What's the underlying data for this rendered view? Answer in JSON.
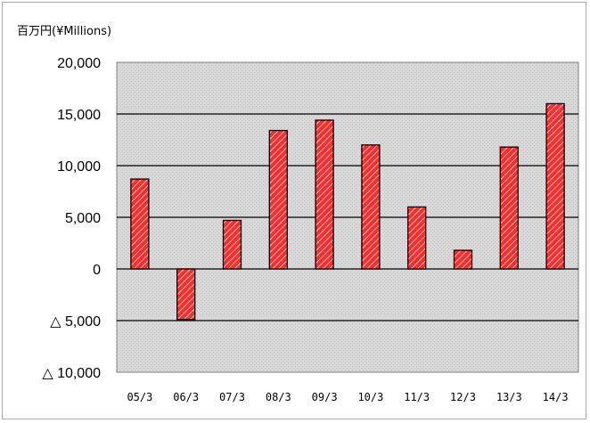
{
  "chart_data": {
    "type": "bar",
    "unit_label": "百万円(¥Millions)",
    "categories": [
      "05/3",
      "06/3",
      "07/3",
      "08/3",
      "09/3",
      "10/3",
      "11/3",
      "12/3",
      "13/3",
      "14/3"
    ],
    "values": [
      8700,
      -4900,
      4700,
      13400,
      14400,
      12000,
      6000,
      1800,
      11800,
      16000
    ],
    "ylim": [
      -10000,
      20000
    ],
    "yticks": [
      20000,
      15000,
      10000,
      5000,
      0,
      -5000,
      -10000
    ],
    "ytick_labels": [
      "20,000",
      "15,000",
      "10,000",
      "5,000",
      "0",
      "△ 5,000",
      "△ 10,000"
    ],
    "grid": true,
    "legend": "none",
    "bar_color": "#ff2b2b",
    "bar_hatch_color": "#ffffff",
    "plot_bg": "#d8d8d8"
  }
}
